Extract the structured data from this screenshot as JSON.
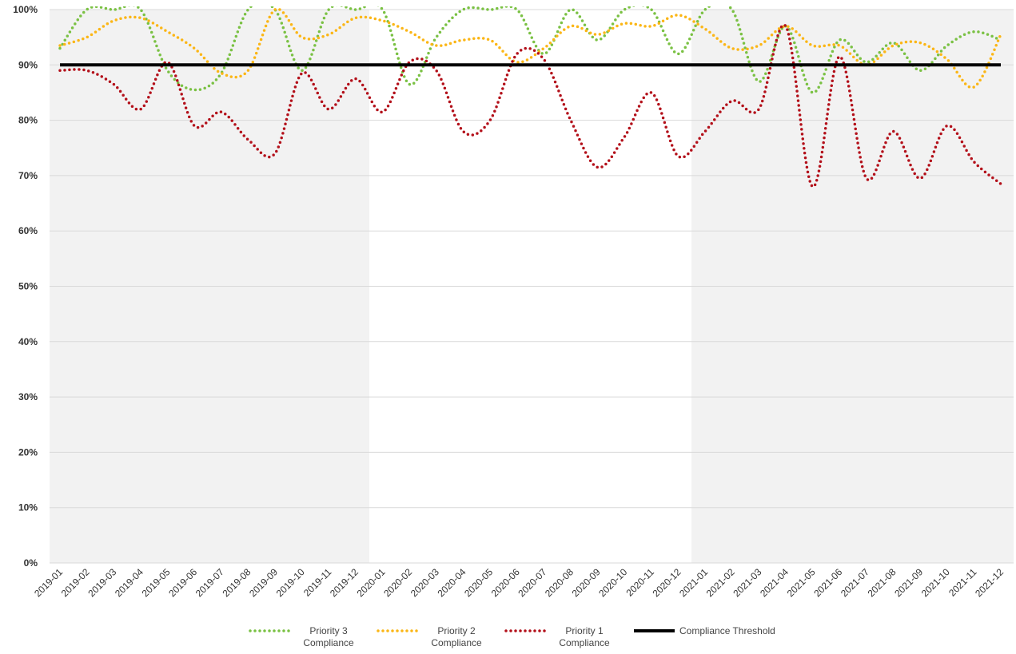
{
  "chart_data": {
    "type": "line",
    "categories": [
      "2019-01",
      "2019-02",
      "2019-03",
      "2019-04",
      "2019-05",
      "2019-06",
      "2019-07",
      "2019-08",
      "2019-09",
      "2019-10",
      "2019-11",
      "2019-12",
      "2020-01",
      "2020-02",
      "2020-03",
      "2020-04",
      "2020-05",
      "2020-06",
      "2020-07",
      "2020-08",
      "2020-09",
      "2020-10",
      "2020-11",
      "2020-12",
      "2021-01",
      "2021-02",
      "2021-03",
      "2021-04",
      "2021-05",
      "2021-06",
      "2021-07",
      "2021-08",
      "2021-09",
      "2021-10",
      "2021-11",
      "2021-12"
    ],
    "series": [
      {
        "name": "Priority 3 Compliance",
        "color": "#7ac143",
        "style": "dotted",
        "values": [
          93,
          100,
          100,
          100,
          89,
          85.5,
          88.5,
          100,
          100,
          89,
          100,
          100,
          100,
          86.5,
          95,
          100,
          100,
          100,
          92,
          100,
          94.5,
          100,
          100,
          92,
          100,
          100,
          87,
          97,
          85,
          94.5,
          90.5,
          94,
          89,
          93.5,
          96,
          94.5
        ]
      },
      {
        "name": "Priority 2 Compliance",
        "color": "#fbb616",
        "style": "dotted",
        "values": [
          93.5,
          95,
          98,
          98.5,
          96,
          93,
          88.5,
          89,
          100,
          95,
          95.5,
          98.5,
          98,
          96,
          93.5,
          94.5,
          94.5,
          90.5,
          93,
          97,
          95.5,
          97.5,
          97,
          99,
          96.5,
          93,
          93.5,
          97,
          93.5,
          93.5,
          90,
          93.5,
          94,
          91,
          86,
          95.5
        ]
      },
      {
        "name": "Priority 1 Compliance",
        "color": "#b3101a",
        "style": "dotted",
        "values": [
          89,
          89,
          86.5,
          82,
          90.5,
          79,
          81.5,
          76.5,
          74,
          88.5,
          82,
          87.5,
          81.5,
          90.5,
          89,
          78,
          80,
          92,
          91,
          80,
          71.5,
          77,
          85,
          73.5,
          78,
          83.5,
          82,
          97,
          68,
          91.5,
          69.5,
          78,
          69.5,
          79,
          72.5,
          68.5
        ]
      },
      {
        "name": "Compliance Threshold",
        "color": "#000000",
        "style": "solid",
        "values": [
          90,
          90,
          90,
          90,
          90,
          90,
          90,
          90,
          90,
          90,
          90,
          90,
          90,
          90,
          90,
          90,
          90,
          90,
          90,
          90,
          90,
          90,
          90,
          90,
          90,
          90,
          90,
          90,
          90,
          90,
          90,
          90,
          90,
          90,
          90,
          90
        ]
      }
    ],
    "ylim": [
      0,
      100
    ],
    "yticks": [
      {
        "value": 0,
        "label": "0%"
      },
      {
        "value": 10,
        "label": "10%"
      },
      {
        "value": 20,
        "label": "20%"
      },
      {
        "value": 30,
        "label": "30%"
      },
      {
        "value": 40,
        "label": "40%"
      },
      {
        "value": 50,
        "label": "50%"
      },
      {
        "value": 60,
        "label": "60%"
      },
      {
        "value": 70,
        "label": "70%"
      },
      {
        "value": 80,
        "label": "80%"
      },
      {
        "value": 90,
        "label": "90%"
      },
      {
        "value": 100,
        "label": "100%"
      }
    ],
    "grid": true,
    "smooth": true,
    "legend": "bottom"
  }
}
